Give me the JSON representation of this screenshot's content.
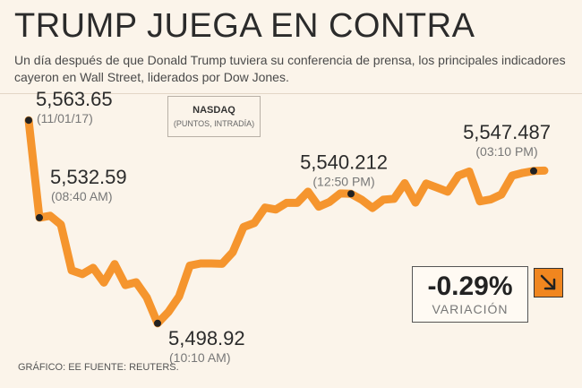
{
  "header": {
    "title": "TRUMP JUEGA EN CONTRA",
    "subtitle": "Un día después de que Donald Trump tuviera su conferencia de prensa, los principales indicadores cayeron en Wall Street, liderados por Dow Jones."
  },
  "index_box": {
    "name": "NASDAQ",
    "unit": "(PUNTOS, INTRADÍA)"
  },
  "variation": {
    "value": "-0.29%",
    "label": "VARIACIÓN",
    "direction_icon": "arrow-down-right-icon"
  },
  "footer": {
    "credit": "GRÁFICO: EE  FUENTE: REUTERS."
  },
  "colors": {
    "line": "#f5952e",
    "marker": "#222222",
    "arrow_bg": "#f0861f",
    "background": "#fbf4ea"
  },
  "chart_data": {
    "type": "line",
    "title": "TRUMP JUEGA EN CONTRA",
    "ylim": [
      5490,
      5570
    ],
    "grid": false,
    "series": [
      {
        "name": "NASDAQ",
        "values": [
          5563.65,
          5532.59,
          5533.2,
          5530.4,
          5515.8,
          5514.6,
          5516.6,
          5511.9,
          5517.8,
          5511.1,
          5512.0,
          5507.1,
          5498.92,
          5502.5,
          5507.5,
          5517.3,
          5518.0,
          5518.0,
          5517.9,
          5521.6,
          5529.6,
          5530.9,
          5535.8,
          5535.2,
          5537.3,
          5537.3,
          5540.9,
          5536.1,
          5537.6,
          5540.3,
          5540.212,
          5538.3,
          5535.7,
          5538.3,
          5538.6,
          5543.6,
          5537.4,
          5543.5,
          5542.2,
          5540.9,
          5546.0,
          5547.3,
          5537.8,
          5538.4,
          5540.0,
          5546.0,
          5546.9,
          5547.487,
          5547.6
        ]
      }
    ],
    "annotations": [
      {
        "point_index": 0,
        "value": "5,563.65",
        "time": "(11/01/17)"
      },
      {
        "point_index": 1,
        "value": "5,532.59",
        "time": "(08:40 AM)"
      },
      {
        "point_index": 12,
        "value": "5,498.92",
        "time": "(10:10 AM)"
      },
      {
        "point_index": 30,
        "value": "5,540.212",
        "time": "(12:50 PM)"
      },
      {
        "point_index": 47,
        "value": "5,547.487",
        "time": "(03:10 PM)"
      }
    ]
  }
}
